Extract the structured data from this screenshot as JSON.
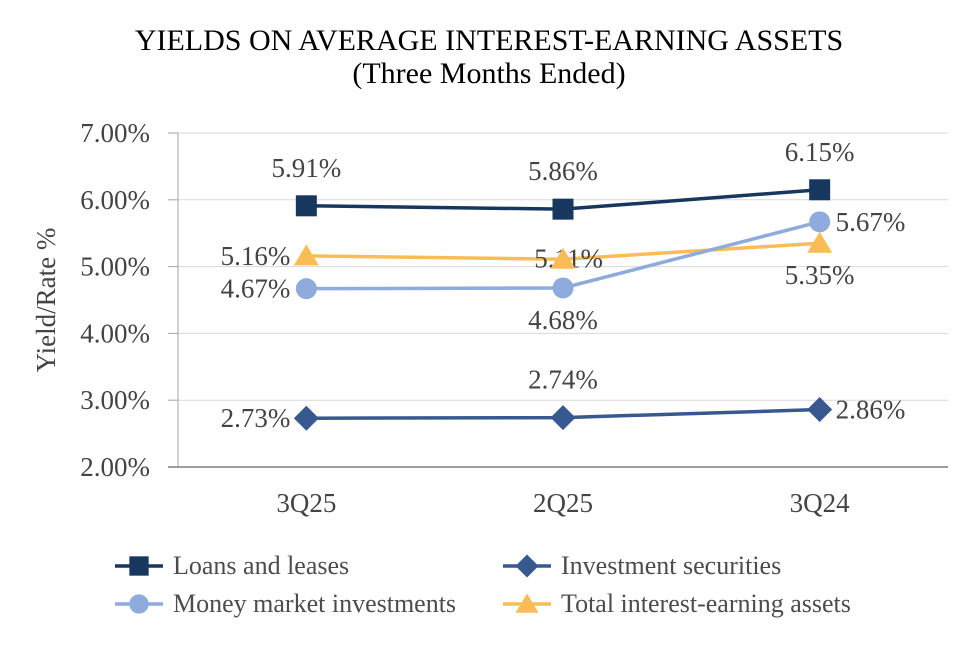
{
  "chart": {
    "title": "YIELDS ON AVERAGE INTEREST-EARNING ASSETS",
    "subtitle": "(Three Months Ended)"
  },
  "chart_data": {
    "type": "line",
    "title": "YIELDS ON AVERAGE INTEREST-EARNING ASSETS",
    "subtitle": "(Three Months Ended)",
    "ylabel": "Yield/Rate %",
    "xlabel": "",
    "ylim": [
      2.0,
      7.0
    ],
    "grid": true,
    "legend_position": "bottom",
    "categories": [
      "3Q25",
      "2Q25",
      "3Q24"
    ],
    "y_ticks": [
      {
        "value": 7.0,
        "label": "7.00%"
      },
      {
        "value": 6.0,
        "label": "6.00%"
      },
      {
        "value": 5.0,
        "label": "5.00%"
      },
      {
        "value": 4.0,
        "label": "4.00%"
      },
      {
        "value": 3.0,
        "label": "3.00%"
      },
      {
        "value": 2.0,
        "label": "2.00%"
      }
    ],
    "series": [
      {
        "name": "Loans and leases",
        "marker": "square",
        "color": "#17375E",
        "values": [
          5.91,
          5.86,
          6.15
        ],
        "data_labels": [
          "5.91%",
          "5.86%",
          "6.15%"
        ],
        "label_positions": [
          "above",
          "above",
          "above"
        ]
      },
      {
        "name": "Investment securities",
        "marker": "diamond",
        "color": "#37598F",
        "values": [
          2.73,
          2.74,
          2.86
        ],
        "data_labels": [
          "2.73%",
          "2.74%",
          "2.86%"
        ],
        "label_positions": [
          "left",
          "above",
          "right"
        ]
      },
      {
        "name": "Money market investments",
        "marker": "circle",
        "color": "#8FAADC",
        "values": [
          4.67,
          4.68,
          5.67
        ],
        "data_labels": [
          "4.67%",
          "4.68%",
          "5.67%"
        ],
        "label_positions": [
          "left",
          "below",
          "right"
        ]
      },
      {
        "name": "Total interest-earning assets",
        "marker": "triangle",
        "color": "#FABD55",
        "values": [
          5.16,
          5.11,
          5.35
        ],
        "data_labels": [
          "5.16%",
          "5.11%",
          "5.35%"
        ],
        "label_positions": [
          "left",
          "center-left",
          "below"
        ]
      }
    ]
  },
  "colors": {
    "background": "#FFFFFF",
    "gridline": "#D9D9D9",
    "axis_line": "#7F7F7F",
    "axis_light": "#A6A6A6",
    "label_text": "#444444",
    "title_text": "#000000"
  }
}
